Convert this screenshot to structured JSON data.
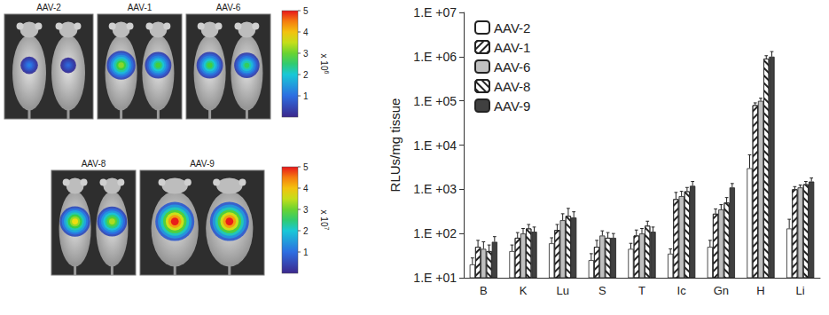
{
  "imaging": {
    "colorbars": [
      {
        "range": [
          0,
          5
        ],
        "ticks": [
          1,
          2,
          3,
          4,
          5
        ],
        "label": "x 10",
        "exponent": "6"
      },
      {
        "range": [
          0,
          5
        ],
        "ticks": [
          1,
          2,
          3,
          4,
          5
        ],
        "label": "x 10",
        "exponent": "7"
      }
    ],
    "panels": [
      {
        "label": "AAV-2",
        "colorbar": 0,
        "peaks": [
          1.2,
          0.9
        ]
      },
      {
        "label": "AAV-1",
        "colorbar": 0,
        "peaks": [
          3.2,
          2.8
        ]
      },
      {
        "label": "AAV-6",
        "colorbar": 0,
        "peaks": [
          2.8,
          2.6
        ]
      },
      {
        "label": "AAV-8",
        "colorbar": 1,
        "peaks": [
          3.8,
          3.4
        ]
      },
      {
        "label": "AAV-9",
        "colorbar": 1,
        "peaks": [
          5,
          5
        ]
      }
    ]
  },
  "chart_data": {
    "type": "bar",
    "y_label": "RLUs/mg tissue",
    "categories": [
      "B",
      "K",
      "Lu",
      "S",
      "T",
      "Ic",
      "Gn",
      "H",
      "Li"
    ],
    "series": [
      {
        "name": "AAV-2",
        "color": "#ffffff",
        "marker": "solid",
        "values": [
          20,
          40,
          60,
          25,
          45,
          35,
          50,
          3000,
          130
        ],
        "errors": [
          8,
          15,
          20,
          10,
          15,
          10,
          20,
          3000,
          80
        ]
      },
      {
        "name": "AAV-1",
        "color": "#ffffff",
        "marker": "hatch_right",
        "values": [
          50,
          80,
          120,
          50,
          90,
          600,
          280,
          80000,
          1000
        ],
        "errors": [
          20,
          25,
          40,
          20,
          30,
          250,
          80,
          10000,
          150
        ]
      },
      {
        "name": "AAV-6",
        "color": "#c0c0c0",
        "marker": "solid",
        "values": [
          45,
          100,
          200,
          90,
          100,
          700,
          350,
          100000,
          1100
        ],
        "errors": [
          20,
          30,
          80,
          25,
          30,
          200,
          100,
          15000,
          150
        ]
      },
      {
        "name": "AAV-8",
        "color": "#ffffff",
        "marker": "hatch_left",
        "values": [
          40,
          130,
          250,
          80,
          150,
          900,
          500,
          900000,
          1300
        ],
        "errors": [
          15,
          30,
          120,
          25,
          40,
          200,
          150,
          150000,
          200
        ]
      },
      {
        "name": "AAV-9",
        "color": "#404040",
        "marker": "solid",
        "values": [
          65,
          110,
          230,
          80,
          110,
          1200,
          1100,
          1000000,
          1500
        ],
        "errors": [
          20,
          30,
          80,
          20,
          30,
          300,
          250,
          300000,
          300
        ]
      }
    ],
    "log": "y",
    "ylim": [
      10,
      10000000
    ],
    "yticks": [
      {
        "value": 10,
        "label": "1.E +01"
      },
      {
        "value": 100,
        "label": "1.E +02"
      },
      {
        "value": 1000,
        "label": "1.E +03"
      },
      {
        "value": 10000,
        "label": "1.E +04"
      },
      {
        "value": 100000,
        "label": "1.E +05"
      },
      {
        "value": 1000000,
        "label": "1.E +06"
      },
      {
        "value": 10000000,
        "label": "1.E +07"
      }
    ],
    "grid": false,
    "legend": "upper left"
  }
}
